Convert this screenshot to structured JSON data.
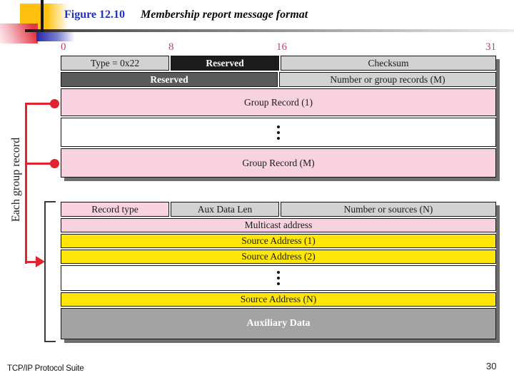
{
  "header": {
    "figure_label": "Figure 12.10",
    "figure_title": "Membership report message format"
  },
  "bit_ruler": {
    "ticks": [
      "0",
      "8",
      "16",
      "31"
    ]
  },
  "message_format_table": {
    "type": "Type = 0x22",
    "reserved1": "Reserved",
    "checksum": "Checksum",
    "reserved2": "Reserved",
    "num_group_records": "Number or group records (M)",
    "group_record_1": "Group Record (1)",
    "group_record_m": "Group Record (M)"
  },
  "group_record_table": {
    "record_type": "Record type",
    "aux_data_len": "Aux Data Len",
    "num_sources": "Number or sources (N)",
    "multicast_address": "Multicast address",
    "source_address_1": "Source Address (1)",
    "source_address_2": "Source Address (2)",
    "source_address_n": "Source Address (N)",
    "auxiliary_data": "Auxiliary Data"
  },
  "annotations": {
    "each_group_record": "Each group record"
  },
  "footer": {
    "left": "TCP/IP Protocol Suite",
    "page_number": "30"
  },
  "colors": {
    "pink": "#f8d2de",
    "yellow": "#ffe609",
    "light_gray": "#d2d2d2",
    "dark_gray": "#5a5a5a",
    "near_black": "#1c1c1c",
    "aux_gray": "#a3a3a3",
    "connector_red": "#e0242d",
    "bit_label_rose": "#c63d7f",
    "figure_label_blue": "#2230bd",
    "shadow_gray": "#6f6f6f",
    "decoration_yellow": "#ffc10e",
    "decoration_blue": "#2629ac",
    "decoration_red": "#e23946"
  }
}
